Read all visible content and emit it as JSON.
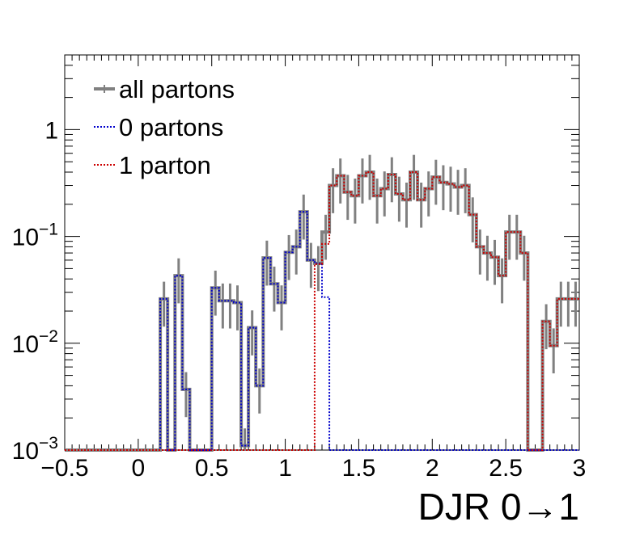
{
  "chart_data": {
    "type": "histogram",
    "title": "",
    "xlabel": "DJR 0→1",
    "ylabel": "",
    "xlim": [
      -0.5,
      3
    ],
    "ylim": [
      0.001,
      5
    ],
    "log_y": true,
    "grid": false,
    "legend_position": "top-left",
    "x_ticks": [
      {
        "value": -0.5,
        "label": "−0.5"
      },
      {
        "value": 0,
        "label": "0"
      },
      {
        "value": 0.5,
        "label": "0.5"
      },
      {
        "value": 1,
        "label": "1"
      },
      {
        "value": 1.5,
        "label": "1.5"
      },
      {
        "value": 2,
        "label": "2"
      },
      {
        "value": 2.5,
        "label": "2.5"
      },
      {
        "value": 3,
        "label": "3"
      }
    ],
    "y_ticks": [
      {
        "value": 0.001,
        "base": "10",
        "exp": "−3"
      },
      {
        "value": 0.01,
        "base": "10",
        "exp": "−2"
      },
      {
        "value": 0.1,
        "base": "10",
        "exp": "−1"
      },
      {
        "value": 1,
        "base": "1",
        "exp": ""
      }
    ],
    "bin_edges_range": [
      -0.5,
      3.0
    ],
    "bin_width": 0.05,
    "series": [
      {
        "name": "all partons",
        "color": "#808080",
        "style": "solid",
        "values": [
          0.001,
          0.001,
          0.001,
          0.001,
          0.001,
          0.001,
          0.001,
          0.001,
          0.001,
          0.001,
          0.001,
          0.001,
          0.001,
          0.026,
          0.001,
          0.043,
          0.0037,
          0.001,
          0.001,
          0.001,
          0.033,
          0.025,
          0.025,
          0.024,
          0.0011,
          0.014,
          0.004,
          0.063,
          0.036,
          0.024,
          0.071,
          0.08,
          0.17,
          0.06,
          0.056,
          0.11,
          0.3,
          0.37,
          0.26,
          0.24,
          0.37,
          0.4,
          0.24,
          0.28,
          0.38,
          0.25,
          0.22,
          0.4,
          0.22,
          0.28,
          0.36,
          0.32,
          0.31,
          0.29,
          0.3,
          0.16,
          0.08,
          0.07,
          0.064,
          0.043,
          0.11,
          0.11,
          0.07,
          0.001,
          0.001,
          0.016,
          0.0095,
          0.026,
          0.026,
          0.026
        ]
      },
      {
        "name": "0 partons",
        "color": "#0000cc",
        "style": "dotted",
        "values": [
          0.001,
          0.001,
          0.001,
          0.001,
          0.001,
          0.001,
          0.001,
          0.001,
          0.001,
          0.001,
          0.001,
          0.001,
          0.001,
          0.026,
          0.001,
          0.043,
          0.0037,
          0.001,
          0.001,
          0.001,
          0.033,
          0.025,
          0.025,
          0.024,
          0.0011,
          0.014,
          0.004,
          0.063,
          0.036,
          0.024,
          0.071,
          0.08,
          0.17,
          0.06,
          0.056,
          0.027,
          0.001,
          0.001,
          0.001,
          0.001,
          0.001,
          0.001,
          0.001,
          0.001,
          0.001,
          0.001,
          0.001,
          0.001,
          0.001,
          0.001,
          0.001,
          0.001,
          0.001,
          0.001,
          0.001,
          0.001,
          0.001,
          0.001,
          0.001,
          0.001,
          0.001,
          0.001,
          0.001,
          0.001,
          0.001,
          0.001,
          0.001,
          0.001,
          0.001,
          0.001
        ]
      },
      {
        "name": "1 parton",
        "color": "#cc0000",
        "style": "dotted",
        "values": [
          0.001,
          0.001,
          0.001,
          0.001,
          0.001,
          0.001,
          0.001,
          0.001,
          0.001,
          0.001,
          0.001,
          0.001,
          0.001,
          0.001,
          0.001,
          0.001,
          0.001,
          0.001,
          0.001,
          0.001,
          0.001,
          0.001,
          0.001,
          0.001,
          0.001,
          0.001,
          0.001,
          0.001,
          0.001,
          0.001,
          0.001,
          0.001,
          0.001,
          0.001,
          0.055,
          0.085,
          0.3,
          0.37,
          0.26,
          0.24,
          0.37,
          0.4,
          0.24,
          0.28,
          0.38,
          0.25,
          0.22,
          0.4,
          0.22,
          0.28,
          0.36,
          0.32,
          0.31,
          0.29,
          0.3,
          0.16,
          0.08,
          0.07,
          0.064,
          0.043,
          0.11,
          0.11,
          0.07,
          0.001,
          0.001,
          0.016,
          0.0095,
          0.026,
          0.026,
          0.026
        ]
      }
    ]
  }
}
